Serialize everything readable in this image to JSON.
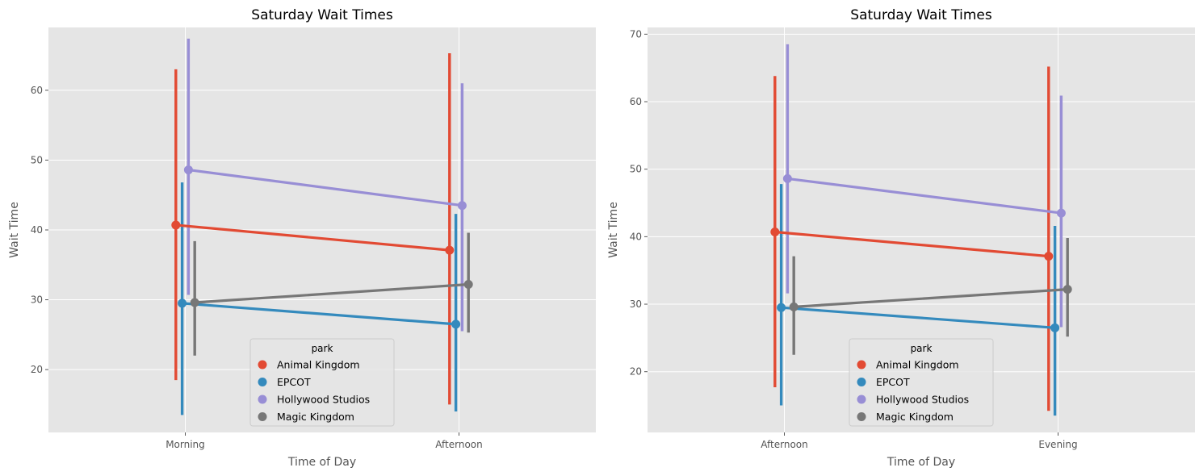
{
  "chart_data": [
    {
      "type": "point",
      "title": "Saturday Wait Times",
      "xlabel": "Time of Day",
      "ylabel": "Wait Time",
      "categories": [
        "Morning",
        "Afternoon"
      ],
      "ylim": [
        11,
        69
      ],
      "yticks": [
        20,
        30,
        40,
        50,
        60
      ],
      "grid": true,
      "legend": {
        "title": "park",
        "placement": "bottom-center"
      },
      "series": [
        {
          "name": "Animal Kingdom",
          "color": "#E24A33",
          "values": [
            40.7,
            37.1
          ],
          "ci_low": [
            18.5,
            15.0
          ],
          "ci_high": [
            63.0,
            65.3
          ]
        },
        {
          "name": "EPCOT",
          "color": "#348ABD",
          "values": [
            29.5,
            26.5
          ],
          "ci_low": [
            13.5,
            14.0
          ],
          "ci_high": [
            46.8,
            42.3
          ]
        },
        {
          "name": "Hollywood Studios",
          "color": "#988ED5",
          "values": [
            48.6,
            43.5
          ],
          "ci_low": [
            30.7,
            25.5
          ],
          "ci_high": [
            67.4,
            61.0
          ]
        },
        {
          "name": "Magic Kingdom",
          "color": "#777777",
          "values": [
            29.6,
            32.2
          ],
          "ci_low": [
            22.0,
            25.3
          ],
          "ci_high": [
            38.4,
            39.6
          ]
        }
      ]
    },
    {
      "type": "point",
      "title": "Saturday Wait Times",
      "xlabel": "Time of Day",
      "ylabel": "Wait Time",
      "categories": [
        "Afternoon",
        "Evening"
      ],
      "ylim": [
        11,
        71
      ],
      "yticks": [
        20,
        30,
        40,
        50,
        60,
        70
      ],
      "grid": true,
      "legend": {
        "title": "park",
        "placement": "bottom-center"
      },
      "series": [
        {
          "name": "Animal Kingdom",
          "color": "#E24A33",
          "values": [
            40.7,
            37.1
          ],
          "ci_low": [
            17.7,
            14.2
          ],
          "ci_high": [
            63.8,
            65.2
          ]
        },
        {
          "name": "EPCOT",
          "color": "#348ABD",
          "values": [
            29.5,
            26.5
          ],
          "ci_low": [
            15.0,
            13.5
          ],
          "ci_high": [
            47.8,
            41.6
          ]
        },
        {
          "name": "Hollywood Studios",
          "color": "#988ED5",
          "values": [
            48.6,
            43.5
          ],
          "ci_low": [
            31.6,
            26.6
          ],
          "ci_high": [
            68.5,
            60.9
          ]
        },
        {
          "name": "Magic Kingdom",
          "color": "#777777",
          "values": [
            29.6,
            32.2
          ],
          "ci_low": [
            22.5,
            25.2
          ],
          "ci_high": [
            37.1,
            39.8
          ]
        }
      ]
    }
  ]
}
